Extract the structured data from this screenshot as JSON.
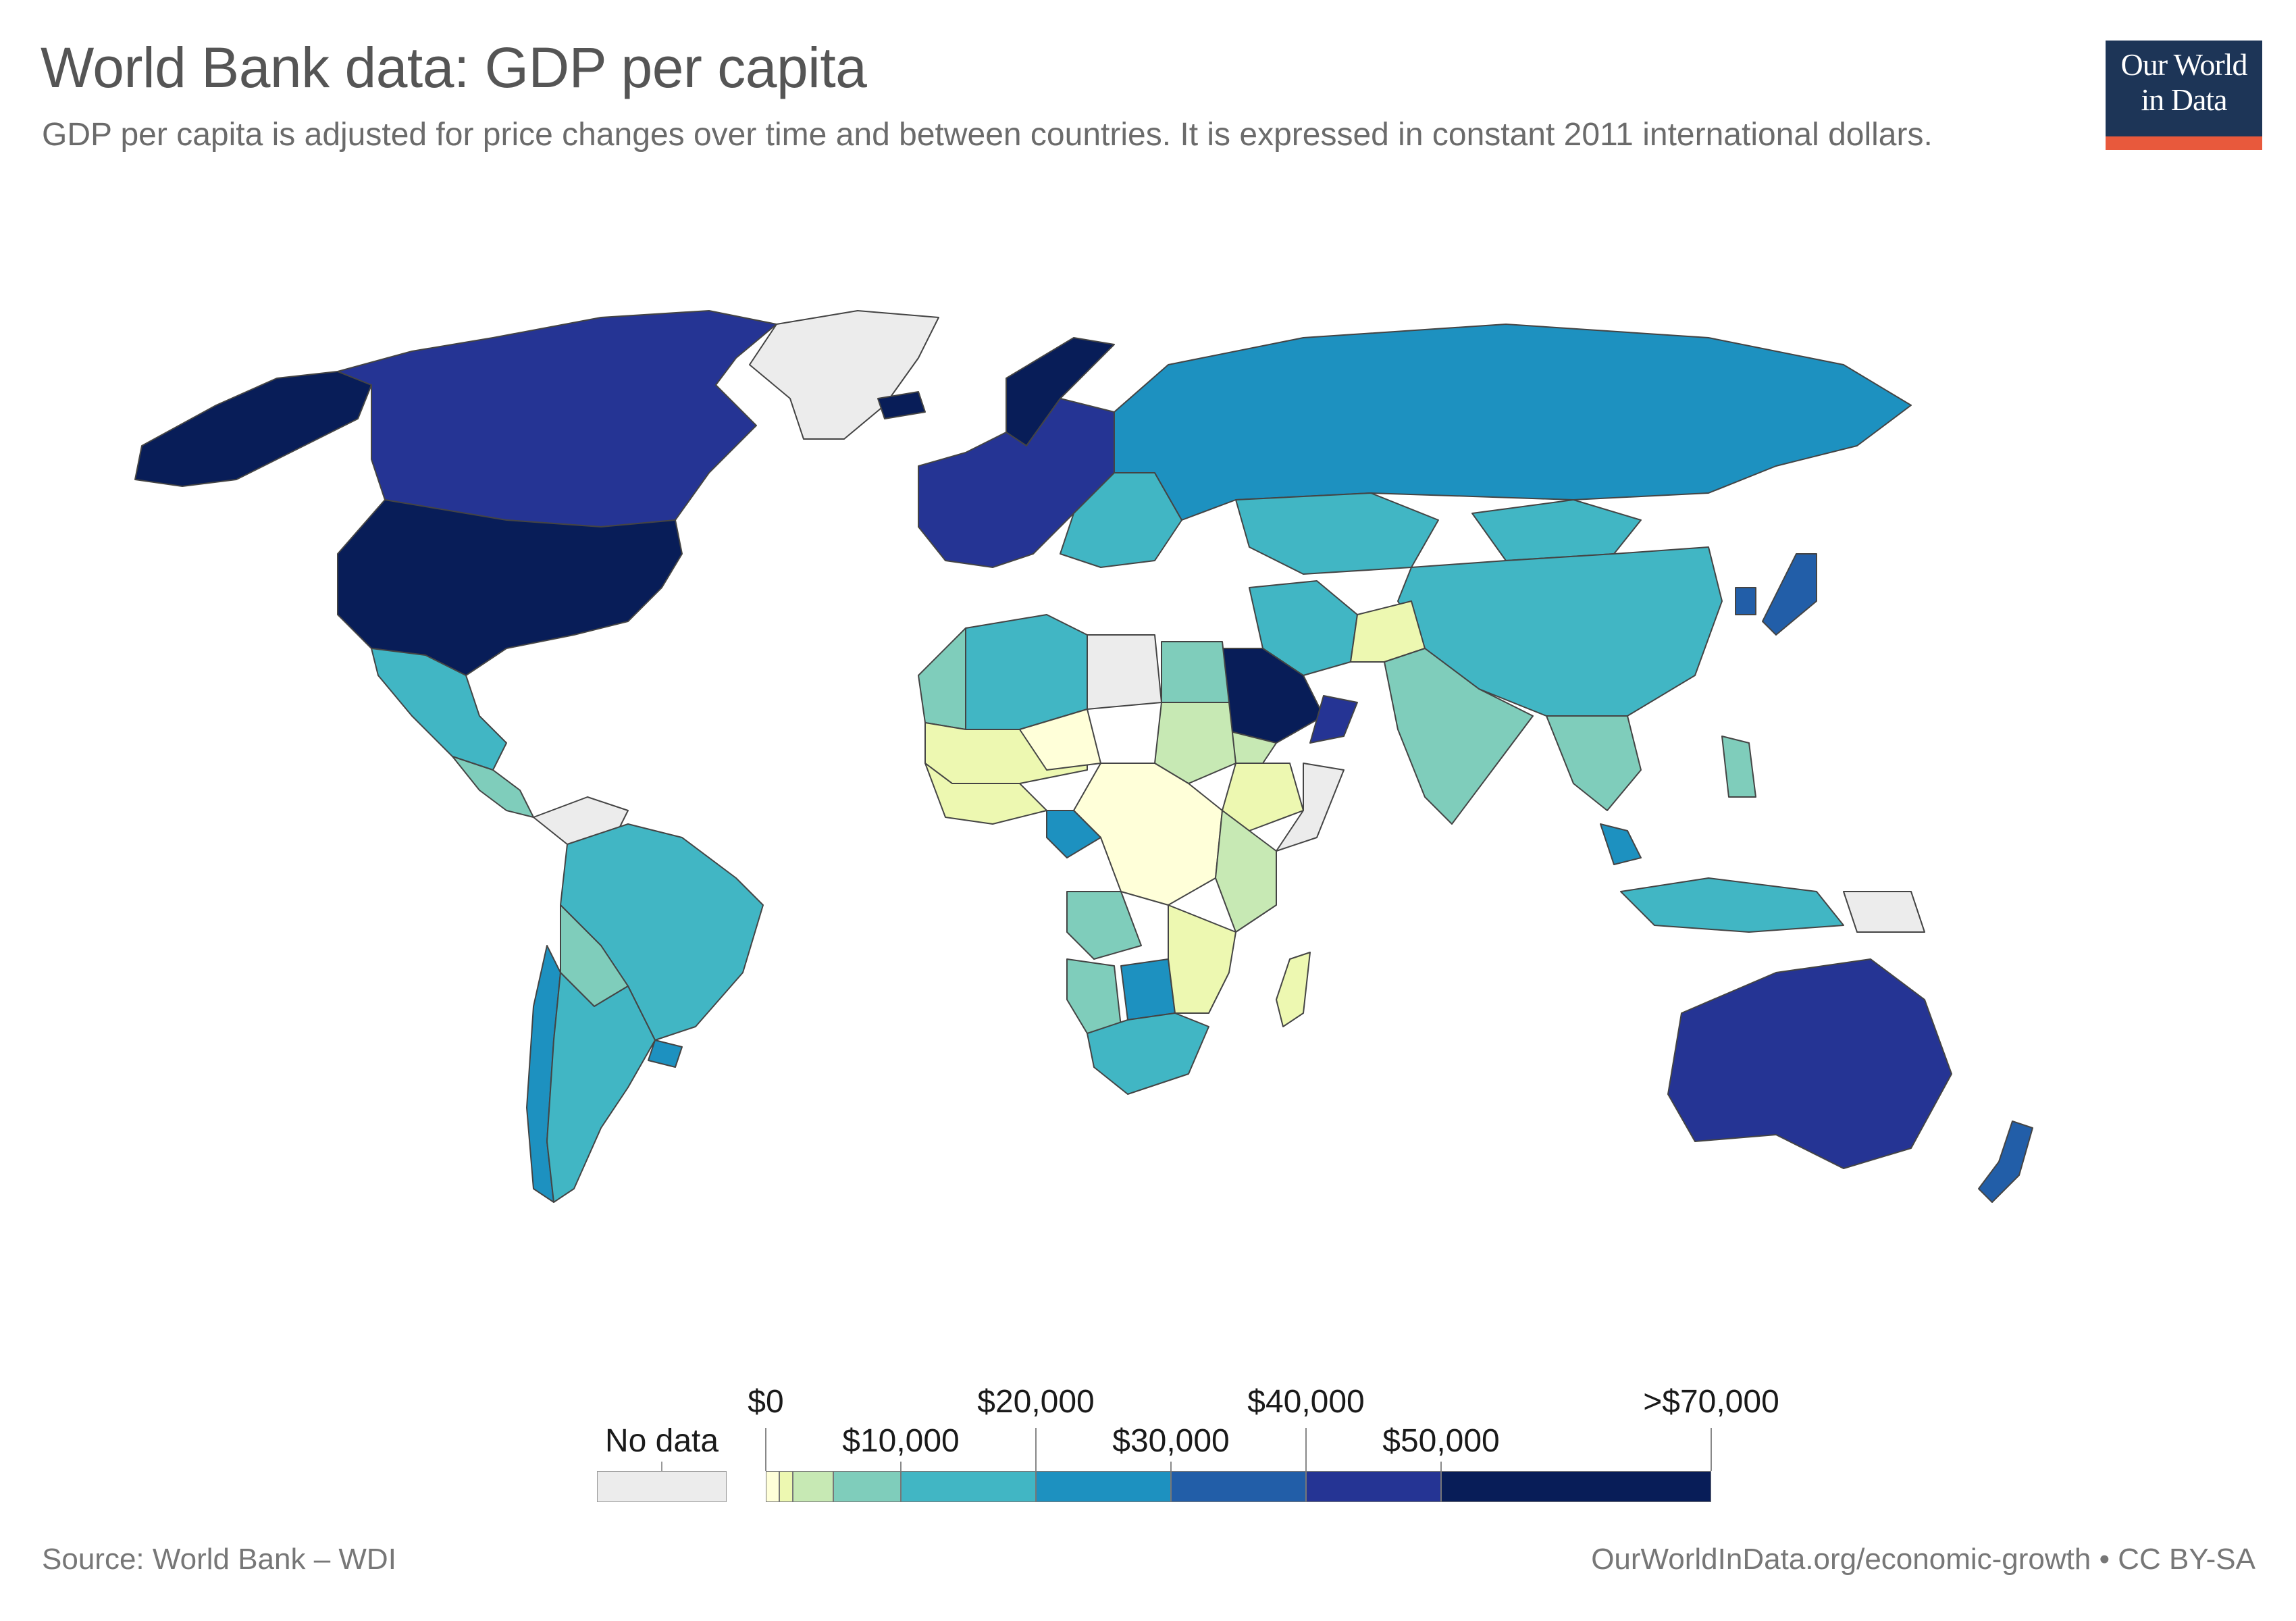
{
  "header": {
    "title": "World Bank data: GDP per capita",
    "subtitle": "GDP per capita is adjusted for price changes over time and between countries. It is expressed in constant 2011 international dollars."
  },
  "logo": {
    "line1": "Our World",
    "line2": "in Data",
    "bg_color": "#1d3557",
    "accent_color": "#e8593c"
  },
  "legend": {
    "no_data_label": "No data",
    "no_data_color": "#ececec",
    "tick_labels_upper": [
      "$0",
      "$20,000",
      "$40,000",
      ">$70,000"
    ],
    "tick_labels_lower": [
      "$10,000",
      "$30,000",
      "$50,000"
    ],
    "bins": [
      {
        "min": 0,
        "max": 1000,
        "color": "#ffffd9"
      },
      {
        "min": 1000,
        "max": 2000,
        "color": "#edf8b1"
      },
      {
        "min": 2000,
        "max": 5000,
        "color": "#c7e9b4"
      },
      {
        "min": 5000,
        "max": 10000,
        "color": "#7fcdbb"
      },
      {
        "min": 10000,
        "max": 20000,
        "color": "#41b6c4"
      },
      {
        "min": 20000,
        "max": 30000,
        "color": "#1d91c0"
      },
      {
        "min": 30000,
        "max": 40000,
        "color": "#225ea8"
      },
      {
        "min": 40000,
        "max": 50000,
        "color": "#253494"
      },
      {
        "min": 50000,
        "max": 70000,
        "color": "#081d58"
      }
    ]
  },
  "map": {
    "regions": [
      {
        "name": "United States",
        "color": "#081d58"
      },
      {
        "name": "Canada",
        "color": "#253494"
      },
      {
        "name": "Alaska",
        "color": "#081d58"
      },
      {
        "name": "Greenland",
        "color": "#ececec"
      },
      {
        "name": "Mexico",
        "color": "#41b6c4"
      },
      {
        "name": "Central America",
        "color": "#7fcdbb"
      },
      {
        "name": "Venezuela",
        "color": "#ececec"
      },
      {
        "name": "Brazil",
        "color": "#41b6c4"
      },
      {
        "name": "Bolivia",
        "color": "#7fcdbb"
      },
      {
        "name": "Chile",
        "color": "#1d91c0"
      },
      {
        "name": "Argentina",
        "color": "#41b6c4"
      },
      {
        "name": "Uruguay",
        "color": "#1d91c0"
      },
      {
        "name": "Iceland",
        "color": "#081d58"
      },
      {
        "name": "Norway",
        "color": "#081d58"
      },
      {
        "name": "Western Europe",
        "color": "#253494"
      },
      {
        "name": "Eastern Europe",
        "color": "#41b6c4"
      },
      {
        "name": "Russia",
        "color": "#1d91c0"
      },
      {
        "name": "Kazakhstan",
        "color": "#41b6c4"
      },
      {
        "name": "China",
        "color": "#41b6c4"
      },
      {
        "name": "Mongolia",
        "color": "#41b6c4"
      },
      {
        "name": "Japan",
        "color": "#225ea8"
      },
      {
        "name": "South Korea",
        "color": "#225ea8"
      },
      {
        "name": "India",
        "color": "#7fcdbb"
      },
      {
        "name": "Afghanistan",
        "color": "#edf8b1"
      },
      {
        "name": "Iran",
        "color": "#41b6c4"
      },
      {
        "name": "Saudi Arabia",
        "color": "#081d58"
      },
      {
        "name": "Oman",
        "color": "#253494"
      },
      {
        "name": "Yemen",
        "color": "#c7e9b4"
      },
      {
        "name": "North Africa",
        "color": "#7fcdbb"
      },
      {
        "name": "Algeria",
        "color": "#41b6c4"
      },
      {
        "name": "Libya",
        "color": "#ececec"
      },
      {
        "name": "Egypt",
        "color": "#7fcdbb"
      },
      {
        "name": "Sahel",
        "color": "#edf8b1"
      },
      {
        "name": "Niger",
        "color": "#ffffd9"
      },
      {
        "name": "Sudan",
        "color": "#c7e9b4"
      },
      {
        "name": "Ethiopia",
        "color": "#edf8b1"
      },
      {
        "name": "Somalia",
        "color": "#ececec"
      },
      {
        "name": "West Africa",
        "color": "#edf8b1"
      },
      {
        "name": "Central Africa",
        "color": "#ffffd9"
      },
      {
        "name": "Gabon",
        "color": "#1d91c0"
      },
      {
        "name": "East Africa",
        "color": "#c7e9b4"
      },
      {
        "name": "Angola",
        "color": "#7fcdbb"
      },
      {
        "name": "Namibia",
        "color": "#7fcdbb"
      },
      {
        "name": "Botswana",
        "color": "#1d91c0"
      },
      {
        "name": "South Africa",
        "color": "#41b6c4"
      },
      {
        "name": "Mozambique",
        "color": "#edf8b1"
      },
      {
        "name": "Madagascar",
        "color": "#edf8b1"
      },
      {
        "name": "Southeast Asia",
        "color": "#7fcdbb"
      },
      {
        "name": "Malaysia",
        "color": "#1d91c0"
      },
      {
        "name": "Indonesia",
        "color": "#41b6c4"
      },
      {
        "name": "Philippines",
        "color": "#7fcdbb"
      },
      {
        "name": "Papua New Guinea",
        "color": "#ececec"
      },
      {
        "name": "Australia",
        "color": "#253494"
      },
      {
        "name": "New Zealand",
        "color": "#225ea8"
      }
    ]
  },
  "footer": {
    "source": "Source: World Bank – WDI",
    "url": "OurWorldInData.org/economic-growth • CC BY-SA"
  }
}
